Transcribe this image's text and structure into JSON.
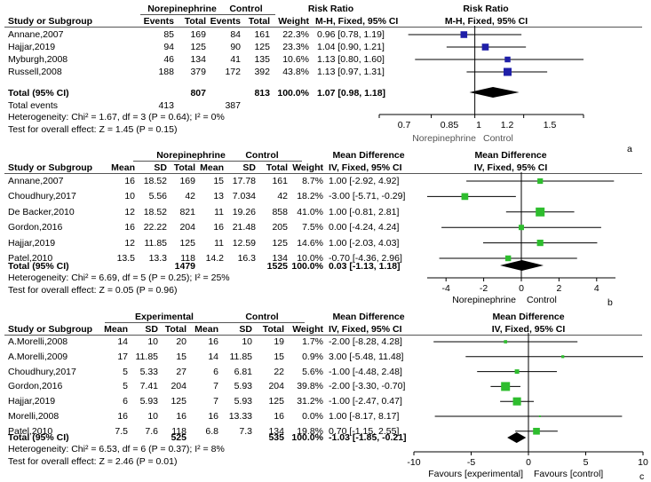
{
  "panels": [
    {
      "id": "a",
      "panel_label": "a",
      "group1_label": "Norepinephrine",
      "group2_label": "Control",
      "effect_title": "Risk Ratio",
      "plot_title": "Risk Ratio",
      "headers": [
        "Study or Subgroup",
        "Events",
        "Total",
        "Events",
        "Total",
        "Weight",
        "M-H, Fixed, 95% CI",
        "M-H, Fixed, 95% CI"
      ],
      "studies": [
        {
          "name": "Annane,2007",
          "cells": [
            "85",
            "169",
            "84",
            "161",
            "22.3%",
            "0.96 [0.78, 1.19]"
          ]
        },
        {
          "name": "Hajjar,2019",
          "cells": [
            "94",
            "125",
            "90",
            "125",
            "23.3%",
            "1.04 [0.90, 1.21]"
          ]
        },
        {
          "name": "Myburgh,2008",
          "cells": [
            "46",
            "134",
            "41",
            "135",
            "10.6%",
            "1.13 [0.80, 1.60]"
          ]
        },
        {
          "name": "Russell,2008",
          "cells": [
            "188",
            "379",
            "172",
            "392",
            "43.8%",
            "1.13 [0.97, 1.31]"
          ]
        }
      ],
      "total_label": "Total (95% CI)",
      "total_cells": [
        "807",
        "813",
        "100.0%",
        "1.07 [0.98, 1.18]"
      ],
      "total_events_label": "Total events",
      "total_events": [
        "413",
        "387"
      ],
      "heterogeneity": "Heterogeneity: Chi² = 1.67, df = 3 (P = 0.64); I² = 0%",
      "overall": "Test for overall effect: Z = 1.45 (P = 0.15)",
      "axis_ticks": [
        "0.7",
        "0.85",
        "1",
        "1.2",
        "1.5"
      ],
      "favours_left": "Norepinephrine",
      "favours_right": "Control"
    },
    {
      "id": "b",
      "panel_label": "b",
      "group1_label": "Norepinephrine",
      "group2_label": "Control",
      "effect_title": "Mean Difference",
      "plot_title": "Mean Difference",
      "headers": [
        "Study or Subgroup",
        "Mean",
        "SD",
        "Total",
        "Mean",
        "SD",
        "Total",
        "Weight",
        "IV, Fixed, 95% CI",
        "IV, Fixed, 95% CI"
      ],
      "studies": [
        {
          "name": "Annane,2007",
          "cells": [
            "16",
            "18.52",
            "169",
            "15",
            "17.78",
            "161",
            "8.7%",
            "1.00 [-2.92, 4.92]"
          ]
        },
        {
          "name": "Choudhury,2017",
          "cells": [
            "10",
            "5.56",
            "42",
            "13",
            "7.034",
            "42",
            "18.2%",
            "-3.00 [-5.71, -0.29]"
          ]
        },
        {
          "name": "De Backer,2010",
          "cells": [
            "12",
            "18.52",
            "821",
            "11",
            "19.26",
            "858",
            "41.0%",
            "1.00 [-0.81, 2.81]"
          ]
        },
        {
          "name": "Gordon,2016",
          "cells": [
            "16",
            "22.22",
            "204",
            "16",
            "21.48",
            "205",
            "7.5%",
            "0.00 [-4.24, 4.24]"
          ]
        },
        {
          "name": "Hajjar,2019",
          "cells": [
            "12",
            "11.85",
            "125",
            "11",
            "12.59",
            "125",
            "14.6%",
            "1.00 [-2.03, 4.03]"
          ]
        },
        {
          "name": "Patel,2010",
          "cells": [
            "13.5",
            "13.3",
            "118",
            "14.2",
            "16.3",
            "134",
            "10.0%",
            "-0.70 [-4.36, 2.96]"
          ]
        }
      ],
      "total_label": "Total (95% CI)",
      "total_cells": [
        "1479",
        "1525",
        "100.0%",
        "0.03 [-1.13, 1.18]"
      ],
      "heterogeneity": "Heterogeneity: Chi² = 6.69, df = 5 (P = 0.25); I² = 25%",
      "overall": "Test for overall effect: Z = 0.05 (P = 0.96)",
      "axis_ticks": [
        "-4",
        "-2",
        "0",
        "2",
        "4"
      ],
      "favours_left": "Norepinephrine",
      "favours_right": "Control"
    },
    {
      "id": "c",
      "panel_label": "c",
      "group1_label": "Experimental",
      "group2_label": "Control",
      "effect_title": "Mean Difference",
      "plot_title": "Mean Difference",
      "headers": [
        "Study or Subgroup",
        "Mean",
        "SD",
        "Total",
        "Mean",
        "SD",
        "Total",
        "Weight",
        "IV, Fixed, 95% CI",
        "IV, Fixed, 95% CI"
      ],
      "studies": [
        {
          "name": "A.Morelli,2008",
          "cells": [
            "14",
            "10",
            "20",
            "16",
            "10",
            "19",
            "1.7%",
            "-2.00 [-8.28, 4.28]"
          ]
        },
        {
          "name": "A.Morelli,2009",
          "cells": [
            "17",
            "11.85",
            "15",
            "14",
            "11.85",
            "15",
            "0.9%",
            "3.00 [-5.48, 11.48]"
          ]
        },
        {
          "name": "Choudhury,2017",
          "cells": [
            "5",
            "5.33",
            "27",
            "6",
            "6.81",
            "22",
            "5.6%",
            "-1.00 [-4.48, 2.48]"
          ]
        },
        {
          "name": "Gordon,2016",
          "cells": [
            "5",
            "7.41",
            "204",
            "7",
            "5.93",
            "204",
            "39.8%",
            "-2.00 [-3.30, -0.70]"
          ]
        },
        {
          "name": "Hajjar,2019",
          "cells": [
            "6",
            "5.93",
            "125",
            "7",
            "5.93",
            "125",
            "31.2%",
            "-1.00 [-2.47, 0.47]"
          ]
        },
        {
          "name": "Morelli,2008",
          "cells": [
            "16",
            "10",
            "16",
            "16",
            "13.33",
            "16",
            "0.0%",
            "1.00 [-8.17, 8.17]"
          ]
        },
        {
          "name": "Patel,2010",
          "cells": [
            "7.5",
            "7.6",
            "118",
            "6.8",
            "7.3",
            "134",
            "19.8%",
            "0.70 [-1.15, 2.55]"
          ]
        }
      ],
      "total_label": "Total (95% CI)",
      "total_cells": [
        "525",
        "535",
        "100.0%",
        "-1.03 [-1.85, -0.21]"
      ],
      "heterogeneity": "Heterogeneity: Chi² = 6.53, df = 6 (P = 0.37); I² = 8%",
      "overall": "Test for overall effect: Z = 2.46 (P = 0.01)",
      "axis_ticks": [
        "-10",
        "-5",
        "0",
        "5",
        "10"
      ],
      "favours_left": "Favours [experimental]",
      "favours_right": "Favours [control]"
    }
  ],
  "colors": {
    "marker_a": "#1f1fa8",
    "marker_bc": "#2ebd2e",
    "line": "#000000"
  },
  "chart_data": [
    {
      "type": "scatter",
      "title": "Risk Ratio",
      "xlabel": "",
      "log_scale": true,
      "xlim": [
        0.7,
        1.5
      ],
      "studies": [
        "Annane,2007",
        "Hajjar,2019",
        "Myburgh,2008",
        "Russell,2008"
      ],
      "estimate": [
        0.96,
        1.04,
        1.13,
        1.13
      ],
      "lower": [
        0.78,
        0.9,
        0.8,
        0.97
      ],
      "upper": [
        1.19,
        1.21,
        1.6,
        1.31
      ],
      "weight": [
        22.3,
        23.3,
        10.6,
        43.8
      ],
      "total": {
        "estimate": 1.07,
        "lower": 0.98,
        "upper": 1.18
      }
    },
    {
      "type": "scatter",
      "title": "Mean Difference",
      "xlabel": "",
      "log_scale": false,
      "xlim": [
        -5,
        5
      ],
      "studies": [
        "Annane,2007",
        "Choudhury,2017",
        "De Backer,2010",
        "Gordon,2016",
        "Hajjar,2019",
        "Patel,2010"
      ],
      "estimate": [
        1.0,
        -3.0,
        1.0,
        0.0,
        1.0,
        -0.7
      ],
      "lower": [
        -2.92,
        -5.71,
        -0.81,
        -4.24,
        -2.03,
        -4.36
      ],
      "upper": [
        4.92,
        -0.29,
        2.81,
        4.24,
        4.03,
        2.96
      ],
      "weight": [
        8.7,
        18.2,
        41.0,
        7.5,
        14.6,
        10.0
      ],
      "total": {
        "estimate": 0.03,
        "lower": -1.13,
        "upper": 1.18
      }
    },
    {
      "type": "scatter",
      "title": "Mean Difference",
      "xlabel": "",
      "log_scale": false,
      "xlim": [
        -10,
        10
      ],
      "studies": [
        "A.Morelli,2008",
        "A.Morelli,2009",
        "Choudhury,2017",
        "Gordon,2016",
        "Hajjar,2019",
        "Morelli,2008",
        "Patel,2010"
      ],
      "estimate": [
        -2.0,
        3.0,
        -1.0,
        -2.0,
        -1.0,
        1.0,
        0.7
      ],
      "lower": [
        -8.28,
        -5.48,
        -4.48,
        -3.3,
        -2.47,
        -8.17,
        -1.15
      ],
      "upper": [
        4.28,
        11.48,
        2.48,
        -0.7,
        0.47,
        8.17,
        2.55
      ],
      "weight": [
        1.7,
        0.9,
        5.6,
        39.8,
        31.2,
        0.0,
        19.8
      ],
      "total": {
        "estimate": -1.03,
        "lower": -1.85,
        "upper": -0.21
      }
    }
  ]
}
